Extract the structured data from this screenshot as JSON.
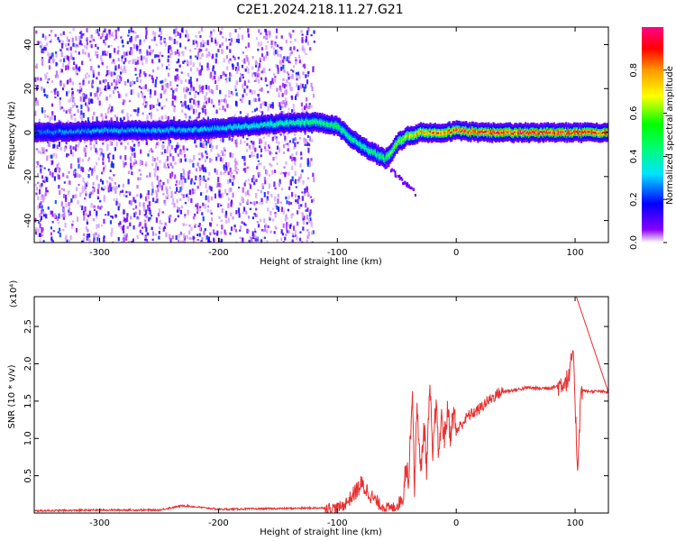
{
  "title": "C2E1.2024.218.11.27.G21",
  "chart_data": [
    {
      "type": "heatmap",
      "xlabel": "Height of straight line (km)",
      "ylabel": "Frequency (Hz)",
      "xlim": [
        -355,
        128
      ],
      "ylim": [
        -50,
        48
      ],
      "xticks": [
        -300,
        -200,
        -100,
        0,
        100
      ],
      "yticks": [
        -40,
        -20,
        0,
        20,
        40
      ],
      "colorbar": {
        "label": "Normalized spectral amplitude",
        "range": [
          0,
          1
        ],
        "ticks": [
          "0.0",
          "0.2",
          "0.4",
          "0.6",
          "0.8"
        ],
        "colormap": [
          "#ffffff",
          "#8a00ff",
          "#0000ff",
          "#00e5ff",
          "#00ff00",
          "#ffff00",
          "#ff9900",
          "#ff0000",
          "#ff0088"
        ]
      },
      "ridge": {
        "x": [
          -355,
          -300,
          -250,
          -200,
          -150,
          -120,
          -100,
          -90,
          -80,
          -70,
          -60,
          -55,
          -50,
          -45,
          -40,
          -35,
          -30,
          -20,
          -10,
          0,
          20,
          50,
          100,
          128
        ],
        "center": [
          0,
          1,
          1,
          2,
          4,
          5,
          3,
          -2,
          -6,
          -9,
          -12,
          -9,
          -5,
          -3,
          -1,
          -1,
          0,
          0,
          0,
          1,
          0,
          0,
          0,
          0
        ],
        "amplitude": [
          0.25,
          0.3,
          0.3,
          0.32,
          0.4,
          0.45,
          0.5,
          0.45,
          0.42,
          0.45,
          0.5,
          0.55,
          0.6,
          0.65,
          0.7,
          0.72,
          0.75,
          0.8,
          0.82,
          0.85,
          0.88,
          0.9,
          0.9,
          0.9
        ]
      },
      "noise_region_x": [
        -355,
        -120
      ],
      "branch_tail": {
        "x": [
          -60,
          -35
        ],
        "y": [
          -14,
          -27
        ]
      }
    },
    {
      "type": "line",
      "xlabel": "Height of straight line (km)",
      "ylabel": "SNR (10 * v/v)",
      "y_multiplier": "(x10⁴)",
      "xlim": [
        -355,
        128
      ],
      "ylim": [
        0,
        2.9
      ],
      "xticks": [
        -300,
        -200,
        -100,
        0,
        100
      ],
      "yticks": [
        "0.5",
        "1.0",
        "1.5",
        "2.0",
        "2.5"
      ],
      "series": [
        {
          "color": "#e83030",
          "x": [
            -355,
            -300,
            -250,
            -230,
            -200,
            -150,
            -110,
            -100,
            -95,
            -90,
            -85,
            -80,
            -75,
            -70,
            -65,
            -60,
            -55,
            -50,
            -45,
            -42,
            -40,
            -37,
            -35,
            -33,
            -30,
            -27,
            -25,
            -22,
            -20,
            -17,
            -15,
            -12,
            -10,
            -7,
            -5,
            -2,
            0,
            5,
            10,
            15,
            20,
            25,
            30,
            35,
            40,
            50,
            60,
            70,
            80,
            85,
            90,
            95,
            98,
            100,
            102,
            105,
            110,
            120,
            128
          ],
          "y": [
            0.03,
            0.04,
            0.04,
            0.1,
            0.05,
            0.06,
            0.07,
            0.07,
            0.1,
            0.18,
            0.28,
            0.38,
            0.3,
            0.2,
            0.12,
            0.08,
            0.06,
            0.1,
            0.2,
            0.7,
            0.4,
            1.7,
            0.3,
            1.5,
            0.5,
            1.2,
            0.6,
            1.7,
            0.7,
            1.5,
            0.8,
            1.3,
            1.0,
            1.4,
            1.05,
            1.35,
            1.1,
            1.2,
            1.3,
            1.35,
            1.4,
            1.48,
            1.54,
            1.6,
            1.63,
            1.65,
            1.68,
            1.67,
            1.68,
            1.7,
            1.75,
            1.8,
            2.2,
            1.5,
            0.57,
            1.65,
            1.63,
            1.63,
            1.62
          ]
        }
      ]
    }
  ]
}
